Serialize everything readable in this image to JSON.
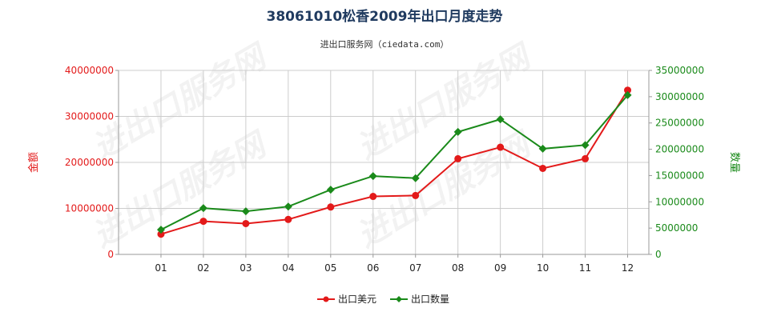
{
  "chart_data": {
    "type": "line",
    "title": "38061010松香2009年出口月度走势",
    "subtitle": "进出口服务网（ciedata.com）",
    "watermark": "进出口服务网",
    "categories": [
      "01",
      "02",
      "03",
      "04",
      "05",
      "06",
      "07",
      "08",
      "09",
      "10",
      "11",
      "12"
    ],
    "y_left": {
      "label": "金额",
      "ticks": [
        "0",
        "10000000",
        "20000000",
        "30000000",
        "40000000"
      ],
      "ylim": [
        0,
        40000000
      ],
      "color": "#e31a1a"
    },
    "y_right": {
      "label": "数量",
      "ticks": [
        "0",
        "5000000",
        "10000000",
        "15000000",
        "20000000",
        "25000000",
        "30000000",
        "35000000"
      ],
      "ylim": [
        0,
        35000000
      ],
      "color": "#1a8a1a"
    },
    "series": [
      {
        "name": "出口美元",
        "axis": "left",
        "color": "#e31a1a",
        "marker": "circle",
        "values": [
          4400000,
          7200000,
          6700000,
          7600000,
          10300000,
          12600000,
          12800000,
          20800000,
          23300000,
          18700000,
          20800000,
          35700000
        ]
      },
      {
        "name": "出口数量",
        "axis": "right",
        "color": "#1a8a1a",
        "marker": "diamond",
        "values": [
          4700000,
          8800000,
          8200000,
          9100000,
          12300000,
          14900000,
          14500000,
          23300000,
          25700000,
          20100000,
          20800000,
          30300000
        ]
      }
    ],
    "grid": true,
    "legend_position": "bottom-center"
  }
}
